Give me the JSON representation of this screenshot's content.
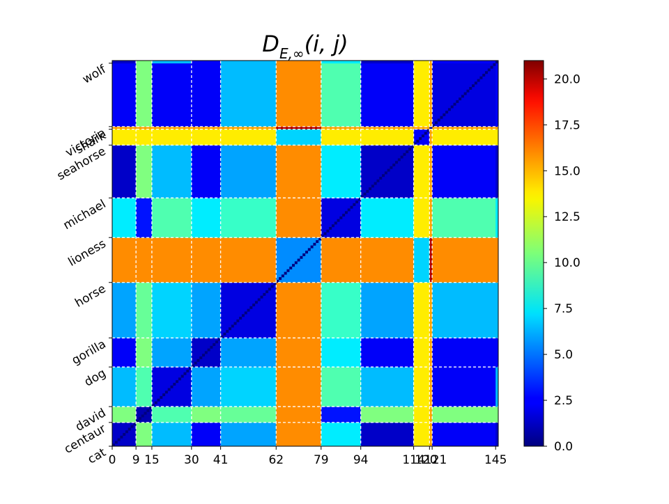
{
  "chart_data": {
    "type": "heatmap",
    "title": "D_{E,∞}(i,j)",
    "title_main": "D",
    "title_sub": "E,∞",
    "title_args": "(i, j)",
    "n": 146,
    "x_ticks": [
      0,
      9,
      15,
      30,
      41,
      62,
      79,
      94,
      114,
      120,
      121,
      145
    ],
    "y_ticks": [
      {
        "label": "cat",
        "index": 0
      },
      {
        "label": "centaur",
        "index": 9
      },
      {
        "label": "david",
        "index": 15
      },
      {
        "label": "dog",
        "index": 30
      },
      {
        "label": "gorilla",
        "index": 41
      },
      {
        "label": "horse",
        "index": 62
      },
      {
        "label": "lioness",
        "index": 79
      },
      {
        "label": "michael",
        "index": 94
      },
      {
        "label": "seahorse",
        "index": 114
      },
      {
        "label": "shark",
        "index": 120
      },
      {
        "label": "victoria",
        "index": 121
      },
      {
        "label": "wolf",
        "index": 145
      }
    ],
    "boundaries": [
      9,
      15,
      30,
      41,
      62,
      79,
      94,
      114,
      120,
      121
    ],
    "colormap": "jet",
    "colorbar": {
      "min": 0,
      "max": 21,
      "ticks": [
        "0.0",
        "2.5",
        "5.0",
        "7.5",
        "10.0",
        "12.5",
        "15.0",
        "17.5",
        "20.0"
      ]
    },
    "groups": [
      {
        "name": "cat",
        "start": 0,
        "end": 9
      },
      {
        "name": "centaur",
        "start": 9,
        "end": 15
      },
      {
        "name": "david",
        "start": 15,
        "end": 30
      },
      {
        "name": "dog",
        "start": 30,
        "end": 41
      },
      {
        "name": "gorilla",
        "start": 41,
        "end": 62
      },
      {
        "name": "horse",
        "start": 62,
        "end": 79
      },
      {
        "name": "lioness",
        "start": 79,
        "end": 94
      },
      {
        "name": "michael",
        "start": 94,
        "end": 114
      },
      {
        "name": "seahorse",
        "start": 114,
        "end": 120
      },
      {
        "name": "shark",
        "start": 120,
        "end": 121
      },
      {
        "name": "victoria",
        "start": 121,
        "end": 145
      },
      {
        "name": "wolf",
        "start": 145,
        "end": 146
      }
    ],
    "block_values": [
      [
        1.5,
        10.5,
        6.5,
        2.5,
        6.0,
        15.5,
        7.5,
        1.5,
        13.5,
        15.0,
        2.5,
        1.5
      ],
      [
        10.5,
        1.0,
        9.5,
        10.5,
        10.0,
        15.5,
        3.0,
        10.5,
        13.5,
        15.0,
        10.5,
        10.5
      ],
      [
        6.5,
        9.5,
        2.0,
        6.0,
        7.0,
        15.5,
        9.5,
        6.5,
        13.5,
        15.0,
        2.5,
        6.5
      ],
      [
        2.5,
        10.5,
        6.0,
        1.5,
        6.0,
        15.5,
        7.5,
        2.5,
        13.5,
        15.0,
        2.5,
        2.5
      ],
      [
        6.0,
        10.0,
        7.0,
        6.0,
        2.0,
        15.5,
        9.0,
        6.0,
        13.5,
        15.0,
        6.5,
        6.5
      ],
      [
        15.5,
        15.5,
        15.5,
        15.5,
        15.5,
        5.5,
        15.5,
        15.5,
        7.0,
        20.0,
        15.5,
        15.5
      ],
      [
        7.5,
        3.0,
        9.5,
        7.5,
        9.0,
        15.5,
        2.0,
        7.5,
        13.5,
        15.0,
        9.5,
        7.5
      ],
      [
        1.5,
        10.5,
        6.5,
        2.5,
        6.0,
        15.5,
        7.5,
        1.5,
        13.5,
        15.0,
        2.5,
        1.5
      ],
      [
        13.5,
        13.5,
        13.5,
        13.5,
        13.5,
        7.0,
        13.5,
        13.5,
        2.5,
        15.0,
        13.5,
        13.5
      ],
      [
        15.0,
        15.0,
        15.0,
        15.0,
        15.0,
        20.0,
        15.0,
        15.0,
        15.0,
        0.0,
        15.0,
        15.0
      ],
      [
        2.5,
        10.5,
        2.5,
        2.5,
        6.5,
        15.5,
        9.5,
        2.5,
        13.5,
        15.0,
        2.0,
        2.5
      ],
      [
        1.5,
        10.5,
        6.5,
        2.5,
        6.5,
        15.5,
        7.5,
        1.5,
        13.5,
        15.0,
        2.5,
        0.0
      ]
    ]
  }
}
